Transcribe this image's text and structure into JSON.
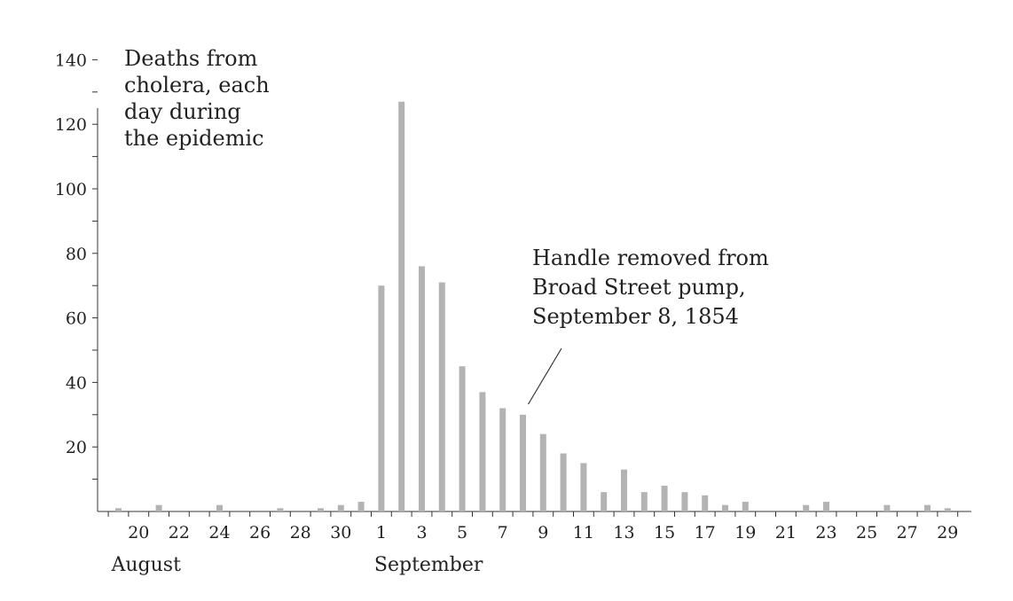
{
  "chart_data": {
    "type": "bar",
    "title": "Deaths from cholera, each day during the epidemic",
    "title_lines": [
      "Deaths from",
      "cholera, each",
      "day during",
      "the epidemic"
    ],
    "annotation": {
      "lines": [
        "Handle removed from",
        "Broad Street pump,",
        "September 8, 1854"
      ],
      "points_to": "Sep 8"
    },
    "months": [
      {
        "label": "August",
        "starts_at": "Aug 19"
      },
      {
        "label": "September",
        "starts_at": "Sep 1"
      }
    ],
    "y_ticks": [
      "20",
      "40",
      "60",
      "80",
      "100",
      "120",
      "140"
    ],
    "x_tick_labels": [
      "20",
      "22",
      "24",
      "26",
      "28",
      "30",
      "1",
      "3",
      "5",
      "7",
      "9",
      "11",
      "13",
      "15",
      "17",
      "19",
      "21",
      "23",
      "25",
      "27",
      "29"
    ],
    "ylim": [
      0,
      140
    ],
    "xlabel": "",
    "ylabel": "",
    "bar_color": "#b3b3b3",
    "axis_color": "#333333",
    "text_color": "#222222",
    "legend": "none",
    "grid": false,
    "series": [
      {
        "dates": [
          "Aug 19",
          "Aug 20",
          "Aug 21",
          "Aug 22",
          "Aug 23",
          "Aug 24",
          "Aug 25",
          "Aug 26",
          "Aug 27",
          "Aug 28",
          "Aug 29",
          "Aug 30",
          "Aug 31",
          "Sep 1",
          "Sep 2",
          "Sep 3",
          "Sep 4",
          "Sep 5",
          "Sep 6",
          "Sep 7",
          "Sep 8",
          "Sep 9",
          "Sep 10",
          "Sep 11",
          "Sep 12",
          "Sep 13",
          "Sep 14",
          "Sep 15",
          "Sep 16",
          "Sep 17",
          "Sep 18",
          "Sep 19",
          "Sep 20",
          "Sep 21",
          "Sep 22",
          "Sep 23",
          "Sep 24",
          "Sep 25",
          "Sep 26",
          "Sep 27",
          "Sep 28",
          "Sep 29"
        ],
        "values": [
          1,
          0,
          2,
          0,
          0,
          2,
          0,
          0,
          1,
          0,
          1,
          2,
          3,
          70,
          127,
          76,
          71,
          45,
          37,
          32,
          30,
          24,
          18,
          15,
          6,
          13,
          6,
          8,
          6,
          5,
          2,
          3,
          0,
          0,
          2,
          3,
          0,
          0,
          2,
          0,
          2,
          1
        ]
      }
    ]
  }
}
